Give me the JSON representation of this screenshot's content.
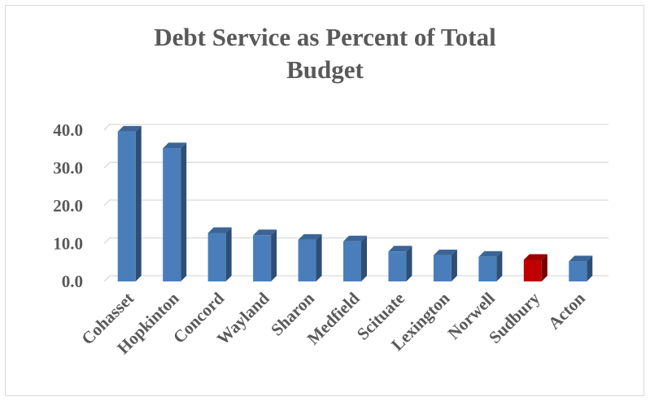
{
  "chart_data": {
    "type": "bar",
    "title_lines": [
      "Debt Service as Percent of Total",
      "Budget"
    ],
    "categories": [
      "Cohasset",
      "Hopkinton",
      "Concord",
      "Wayland",
      "Sharon",
      "Medfield",
      "Scituate",
      "Lexington",
      "Norwell",
      "Sudbury",
      "Acton"
    ],
    "values": [
      39.6,
      35.2,
      12.8,
      12.2,
      11.0,
      10.6,
      7.9,
      6.9,
      6.5,
      5.7,
      5.3
    ],
    "highlight_category": "Sudbury",
    "y_tick_labels": [
      "0.0",
      "10.0",
      "20.0",
      "30.0",
      "40.0"
    ],
    "ylim": [
      0,
      40
    ],
    "grid": true,
    "colors": {
      "bar": "#4a7ebb",
      "highlight": "#c00000",
      "grid": "#d9d9d9",
      "text": "#595959"
    }
  }
}
